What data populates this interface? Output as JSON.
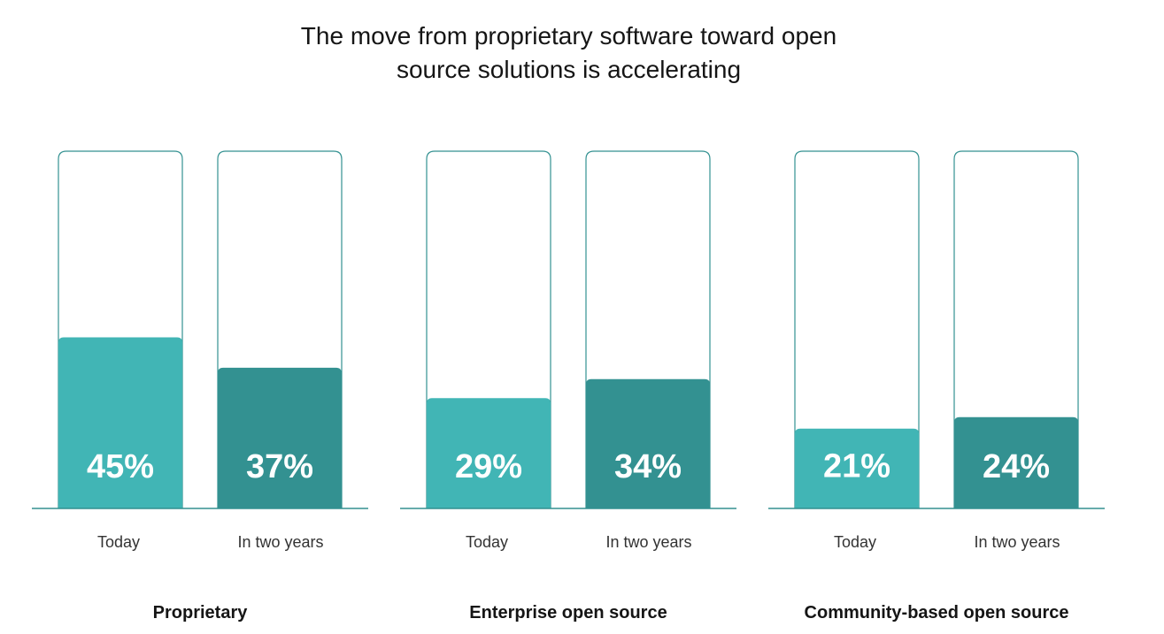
{
  "chart_data": {
    "type": "bar",
    "title_lines": [
      "The move from proprietary software toward open",
      "source solutions is accelerating"
    ],
    "ylim": [
      0,
      100
    ],
    "groups": [
      {
        "name": "Proprietary",
        "bars": [
          {
            "category": "Today",
            "value": 45,
            "label": "45%"
          },
          {
            "category": "In two years",
            "value": 37,
            "label": "37%"
          }
        ]
      },
      {
        "name": "Enterprise open source",
        "bars": [
          {
            "category": "Today",
            "value": 29,
            "label": "29%"
          },
          {
            "category": "In two years",
            "value": 34,
            "label": "34%"
          }
        ]
      },
      {
        "name": "Community-based open source",
        "bars": [
          {
            "category": "Today",
            "value": 21,
            "label": "21%"
          },
          {
            "category": "In two years",
            "value": 24,
            "label": "24%"
          }
        ]
      }
    ],
    "colors": {
      "today": "#41b5b5",
      "in_two_years": "#339191",
      "outline": "#339191",
      "baseline": "#339191"
    }
  }
}
